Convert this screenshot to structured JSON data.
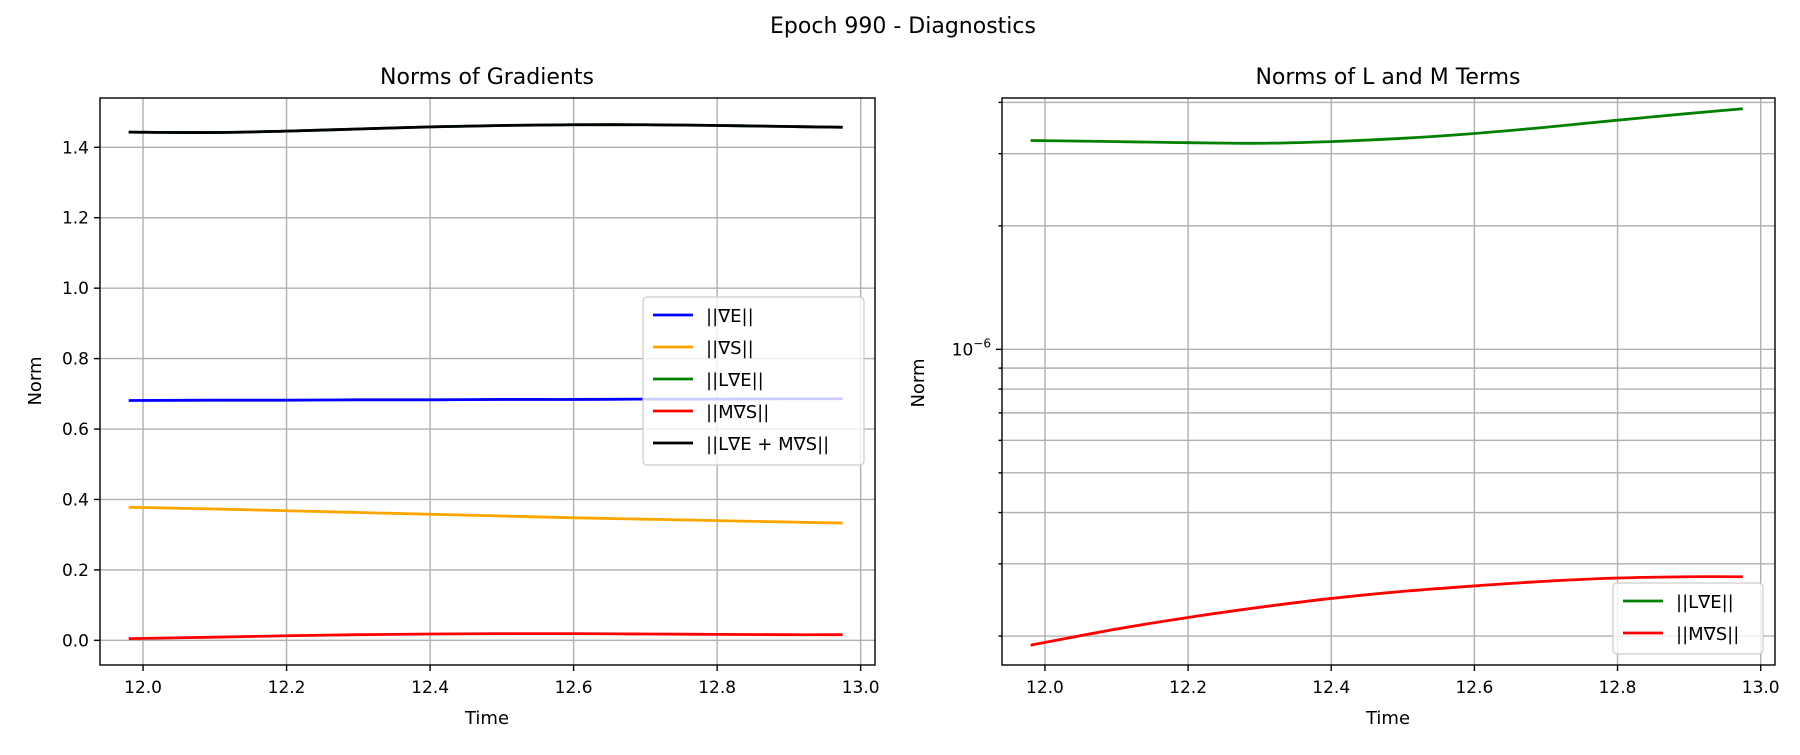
{
  "figure": {
    "suptitle": "Epoch 990 - Diagnostics"
  },
  "chart_data": [
    {
      "type": "line",
      "title": "Norms of Gradients",
      "xlabel": "Time",
      "ylabel": "Norm",
      "xlim": [
        11.94,
        13.02
      ],
      "ylim": [
        -0.07,
        1.54
      ],
      "yscale": "linear",
      "xticks": [
        12.0,
        12.2,
        12.4,
        12.6,
        12.8,
        13.0
      ],
      "xtick_labels": [
        "12.0",
        "12.2",
        "12.4",
        "12.6",
        "12.8",
        "13.0"
      ],
      "yticks": [
        0.0,
        0.2,
        0.4,
        0.6,
        0.8,
        1.0,
        1.2,
        1.4
      ],
      "ytick_labels": [
        "0.0",
        "0.2",
        "0.4",
        "0.6",
        "0.8",
        "1.0",
        "1.2",
        "1.4"
      ],
      "grid": true,
      "legend_position": "center-right",
      "x": [
        11.98,
        12.1,
        12.2,
        12.3,
        12.4,
        12.5,
        12.6,
        12.7,
        12.8,
        12.9,
        12.975
      ],
      "series": [
        {
          "name": "||∇E||",
          "color": "#0000ff",
          "values": [
            0.681,
            0.682,
            0.682,
            0.683,
            0.683,
            0.684,
            0.684,
            0.685,
            0.685,
            0.686,
            0.686
          ]
        },
        {
          "name": "||∇S||",
          "color": "#ffa500",
          "values": [
            0.378,
            0.373,
            0.368,
            0.363,
            0.358,
            0.353,
            0.348,
            0.344,
            0.34,
            0.336,
            0.333
          ]
        },
        {
          "name": "||L∇E||",
          "color": "#008000",
          "values": [
            1.443,
            1.442,
            1.446,
            1.452,
            1.458,
            1.462,
            1.464,
            1.464,
            1.462,
            1.459,
            1.457
          ]
        },
        {
          "name": "||M∇S||",
          "color": "#ff0000",
          "values": [
            0.005,
            0.009,
            0.013,
            0.016,
            0.018,
            0.019,
            0.019,
            0.018,
            0.017,
            0.016,
            0.016
          ]
        },
        {
          "name": "||L∇E + M∇S||",
          "color": "#000000",
          "values": [
            1.443,
            1.442,
            1.446,
            1.452,
            1.458,
            1.462,
            1.464,
            1.464,
            1.462,
            1.459,
            1.457
          ]
        }
      ]
    },
    {
      "type": "line",
      "title": "Norms of L and M Terms",
      "xlabel": "Time",
      "ylabel": "Norm",
      "xlim": [
        11.94,
        13.02
      ],
      "ylim": [
        1.7e-07,
        4.1e-06
      ],
      "yscale": "log",
      "xticks": [
        12.0,
        12.2,
        12.4,
        12.6,
        12.8,
        13.0
      ],
      "xtick_labels": [
        "12.0",
        "12.2",
        "12.4",
        "12.6",
        "12.8",
        "13.0"
      ],
      "yticks": [
        1e-06
      ],
      "ytick_labels": [
        "10",
        "−6"
      ],
      "grid": true,
      "legend_position": "lower-right",
      "x": [
        11.98,
        12.1,
        12.2,
        12.3,
        12.4,
        12.5,
        12.6,
        12.7,
        12.8,
        12.9,
        12.975
      ],
      "series": [
        {
          "name": "||L∇E||",
          "color": "#008000",
          "values": [
            3.23e-06,
            3.21e-06,
            3.19e-06,
            3.18e-06,
            3.21e-06,
            3.27e-06,
            3.36e-06,
            3.48e-06,
            3.62e-06,
            3.76e-06,
            3.86e-06
          ]
        },
        {
          "name": "||M∇S||",
          "color": "#ff0000",
          "values": [
            1.9e-07,
            2.08e-07,
            2.22e-07,
            2.35e-07,
            2.47e-07,
            2.57e-07,
            2.65e-07,
            2.72e-07,
            2.77e-07,
            2.79e-07,
            2.79e-07
          ]
        }
      ]
    }
  ]
}
